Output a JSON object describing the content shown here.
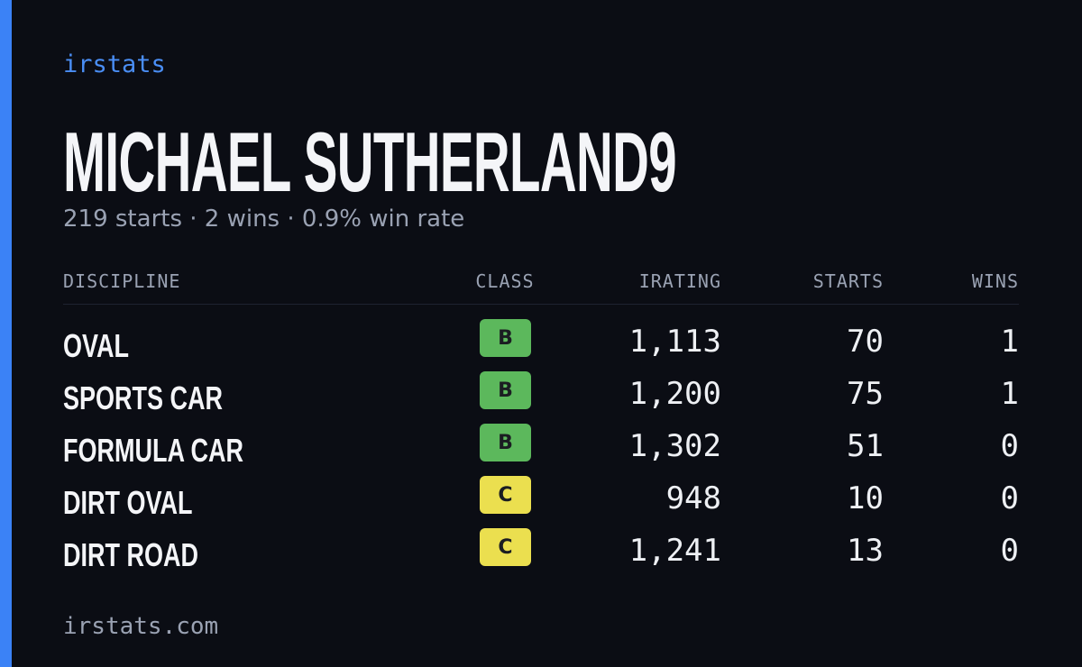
{
  "brand": "irstats",
  "name": "MICHAEL SUTHERLAND9",
  "summary": "219 starts · 2 wins · 0.9% win rate",
  "table": {
    "headers": [
      "DISCIPLINE",
      "CLASS",
      "IRATING",
      "STARTS",
      "WINS"
    ],
    "rows": [
      {
        "discipline": "OVAL",
        "class": "B",
        "class_color": "#5cb85c",
        "irating": "1,113",
        "starts": "70",
        "wins": "1"
      },
      {
        "discipline": "SPORTS CAR",
        "class": "B",
        "class_color": "#5cb85c",
        "irating": "1,200",
        "starts": "75",
        "wins": "1"
      },
      {
        "discipline": "FORMULA CAR",
        "class": "B",
        "class_color": "#5cb85c",
        "irating": "1,302",
        "starts": "51",
        "wins": "0"
      },
      {
        "discipline": "DIRT OVAL",
        "class": "C",
        "class_color": "#ebdf4f",
        "irating": "948",
        "starts": "10",
        "wins": "0"
      },
      {
        "discipline": "DIRT ROAD",
        "class": "C",
        "class_color": "#ebdf4f",
        "irating": "1,241",
        "starts": "13",
        "wins": "0"
      }
    ]
  },
  "footer": "irstats.com"
}
